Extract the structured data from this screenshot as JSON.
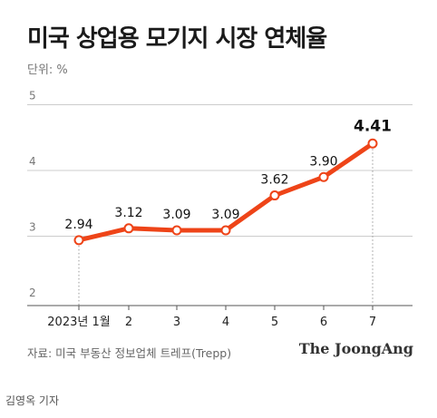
{
  "title": "미국 상업용 모기지 시장 연체율",
  "unit": "단위: %",
  "source": "자료: 미국 부동산 정보업체 트레프(Trepp)",
  "logo": "The JoongAng",
  "reporter": "김영옥 기자",
  "colors": {
    "line": "#ee4418",
    "grid": "#cccccc",
    "axis": "#555555"
  },
  "chart_data": {
    "type": "line",
    "title": "미국 상업용 모기지 시장 연체율",
    "ylabel": "단위: %",
    "categories": [
      "2023년 1월",
      "2",
      "3",
      "4",
      "5",
      "6",
      "7"
    ],
    "series": [
      {
        "values": [
          2.94,
          3.12,
          3.09,
          3.09,
          3.62,
          3.9,
          4.41
        ]
      }
    ],
    "data_labels": [
      "2.94",
      "3.12",
      "3.09",
      "3.09",
      "3.62",
      "3.90",
      "4.41"
    ],
    "yticks": [
      "2",
      "3",
      "4",
      "5"
    ],
    "ylim": [
      2,
      5
    ],
    "grid": true
  }
}
